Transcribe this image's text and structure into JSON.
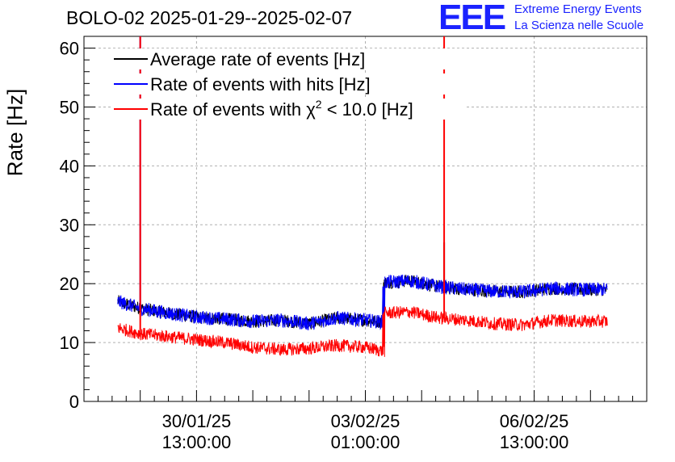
{
  "header": {
    "title": "BOLO-02 2025-01-29--2025-02-07",
    "logo_mark": "EEE",
    "logo_line1": "Extreme Energy Events",
    "logo_line2": "La Scienza nelle Scuole"
  },
  "chart_data": {
    "type": "line",
    "title": "BOLO-02 2025-01-29--2025-02-07",
    "xlabel": "",
    "ylabel": "Rate [Hz]",
    "ylim": [
      0,
      62
    ],
    "xlim_days": [
      0,
      10
    ],
    "yticks": [
      0,
      10,
      20,
      30,
      40,
      50,
      60
    ],
    "grid": true,
    "legend_position": "top-left",
    "xtick_labels": [
      {
        "day": 2.0,
        "line1": "30/01/25",
        "line2": "13:00:00"
      },
      {
        "day": 5.0,
        "line1": "03/02/25",
        "line2": "01:00:00"
      },
      {
        "day": 8.0,
        "line1": "06/02/25",
        "line2": "13:00:00"
      }
    ],
    "series": [
      {
        "name": "Average rate of events [Hz]",
        "color": "#000000",
        "x": [
          0.6,
          1.0,
          1.5,
          2.0,
          2.5,
          3.0,
          3.5,
          4.0,
          4.5,
          5.0,
          5.3,
          5.35,
          5.8,
          6.3,
          6.8,
          7.3,
          7.8,
          8.3,
          8.8,
          9.3
        ],
        "values": [
          17.0,
          15.8,
          15.0,
          14.3,
          14.0,
          13.6,
          13.8,
          13.2,
          14.2,
          13.8,
          13.5,
          20.2,
          20.5,
          19.5,
          19.0,
          18.7,
          18.6,
          19.2,
          19.0,
          19.0
        ],
        "spikes": [
          {
            "x": 6.4,
            "value": 27
          }
        ]
      },
      {
        "name": "Rate of events with hits [Hz]",
        "color": "#0000ff",
        "x": [
          0.6,
          1.0,
          1.5,
          2.0,
          2.5,
          3.0,
          3.5,
          4.0,
          4.5,
          5.0,
          5.3,
          5.35,
          5.8,
          6.3,
          6.8,
          7.3,
          7.8,
          8.3,
          8.8,
          9.3
        ],
        "values": [
          17.0,
          15.8,
          15.0,
          14.3,
          14.0,
          13.6,
          13.8,
          13.2,
          14.2,
          13.8,
          13.5,
          20.2,
          20.5,
          19.5,
          19.0,
          18.7,
          18.6,
          19.2,
          19.0,
          19.0
        ],
        "spikes": [
          {
            "x": 1.0,
            "value": 62
          }
        ]
      },
      {
        "name": "Rate of events with χ2 < 10.0 [Hz]",
        "color": "#ff0000",
        "x": [
          0.6,
          1.0,
          1.5,
          2.0,
          2.5,
          3.0,
          3.5,
          4.0,
          4.5,
          5.0,
          5.3,
          5.35,
          5.8,
          6.3,
          6.8,
          7.3,
          7.8,
          8.3,
          8.8,
          9.3
        ],
        "values": [
          12.5,
          11.5,
          11.0,
          10.5,
          10.0,
          9.2,
          8.8,
          9.0,
          9.5,
          9.2,
          8.6,
          15.0,
          15.2,
          14.2,
          13.8,
          13.2,
          13.0,
          13.8,
          13.6,
          13.6
        ],
        "spikes": [
          {
            "x": 1.0,
            "value": 62
          },
          {
            "x": 6.4,
            "value": 62
          }
        ]
      }
    ]
  },
  "legend": {
    "items": [
      {
        "label": "Average rate of events [Hz]",
        "color": "#000000"
      },
      {
        "label": "Rate of events with hits [Hz]",
        "color": "#0000ff"
      },
      {
        "label_prefix": "Rate of events with ",
        "chi": "χ",
        "sup": "2",
        "label_suffix": " < 10.0 [Hz]",
        "color": "#ff0000"
      }
    ]
  }
}
